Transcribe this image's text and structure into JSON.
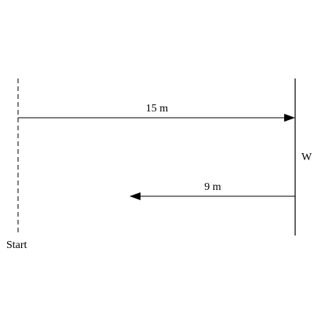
{
  "diagram": {
    "start_label": "Start",
    "wall_label": "W",
    "forward_label": "15 m",
    "backward_label": "9 m",
    "line_color": "#000000",
    "background_color": "#ffffff"
  }
}
